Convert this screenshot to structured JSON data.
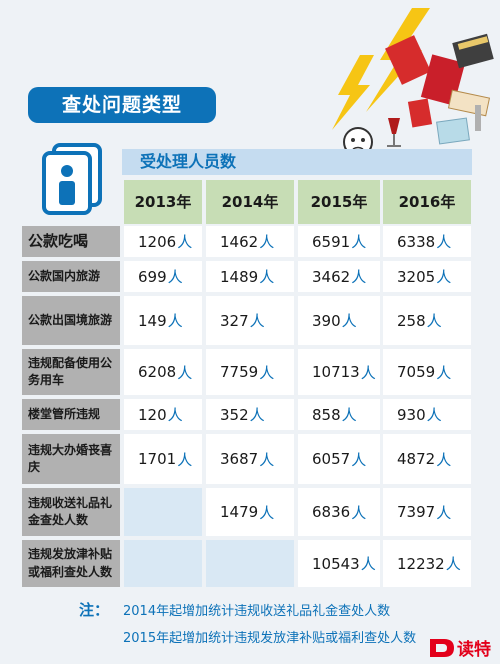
{
  "chart_data": {
    "type": "table",
    "title": "查处问题类型",
    "subtitle": "受处理人员数",
    "unit": "人",
    "columns": [
      "2013年",
      "2014年",
      "2015年",
      "2016年"
    ],
    "rows": [
      {
        "label": "公款吃喝",
        "values": [
          1206,
          1462,
          6591,
          6338
        ]
      },
      {
        "label": "公款国内旅游",
        "values": [
          699,
          1489,
          3462,
          3205
        ]
      },
      {
        "label": "公款出国境旅游",
        "values": [
          149,
          327,
          390,
          258
        ]
      },
      {
        "label": "违规配备使用公务用车",
        "values": [
          6208,
          7759,
          10713,
          7059
        ]
      },
      {
        "label": "楼堂管所违规",
        "values": [
          120,
          352,
          858,
          930
        ]
      },
      {
        "label": "违规大办婚丧喜庆",
        "values": [
          1701,
          3687,
          6057,
          4872
        ]
      },
      {
        "label": "违规收送礼品礼金查处人数",
        "values": [
          null,
          1479,
          6836,
          7397
        ]
      },
      {
        "label": "违规发放津补贴或福利查处人数",
        "values": [
          null,
          null,
          10543,
          12232
        ]
      }
    ]
  },
  "notes": {
    "mark": "注：",
    "line1": "2014年起增加统计违规收送礼品礼金查处人数",
    "line2": "2015年起增加统计违规发放津补贴或福利查处人数"
  },
  "logo": {
    "text": "读特",
    "color": "#e3001b"
  },
  "colors": {
    "accent": "#0d72b8",
    "year_header": "#c7ddb5",
    "row_header": "#b1b1b1",
    "band": "#c5dcf0"
  }
}
